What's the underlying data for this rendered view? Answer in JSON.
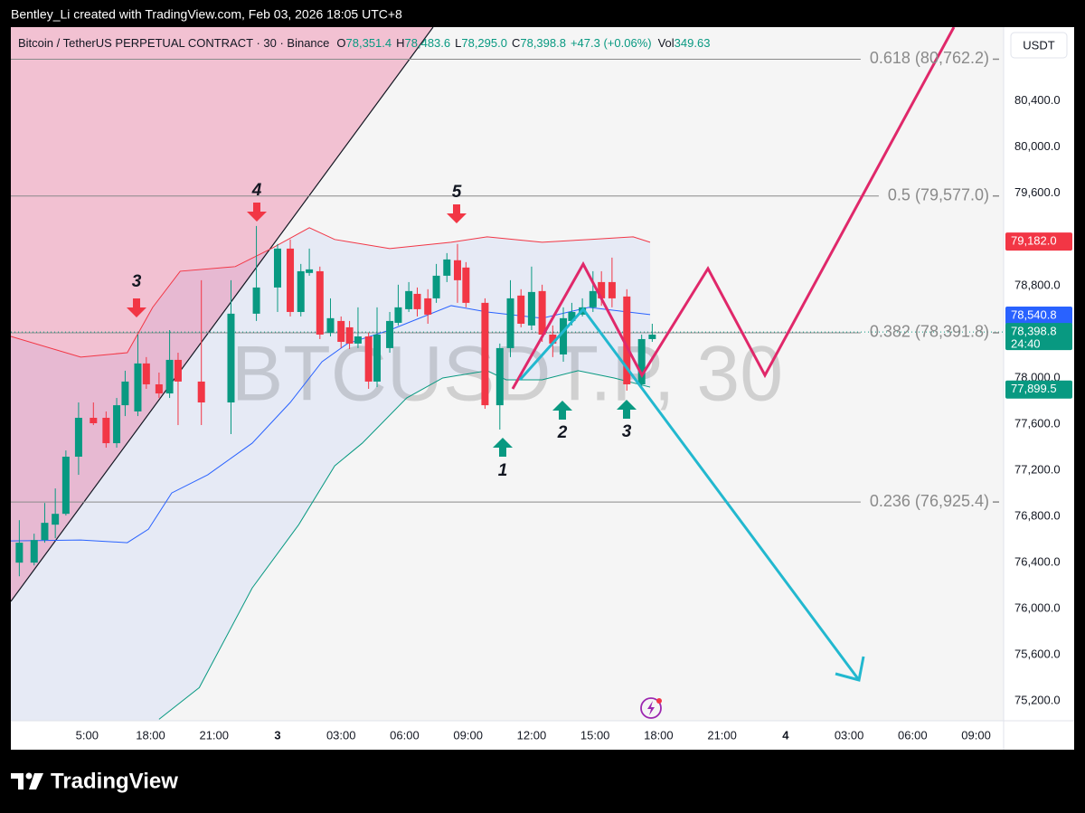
{
  "header": {
    "credit": "Bentley_Li created with TradingView.com, Feb 03, 2026 18:05 UTC+8",
    "brand": "TradingView"
  },
  "chart_data": {
    "type": "candlestick",
    "title": "Bitcoin / TetherUS PERPETUAL CONTRACT · 30 · Binance",
    "legend_values": [
      {
        "key": "O",
        "value": "78,351.4"
      },
      {
        "key": "H",
        "value": "78,483.6"
      },
      {
        "key": "L",
        "value": "78,295.0"
      },
      {
        "key": "C",
        "value": "78,398.8"
      }
    ],
    "change": "+47.3 (+0.06%)",
    "volume": {
      "key": "Vol",
      "value": "349.63"
    },
    "currency": "USDT",
    "watermark": "BTCUSDT.P, 30",
    "up_color": "#089981",
    "down_color": "#f23645",
    "x": [
      -12.2,
      -11.5,
      -11.0,
      -10.5,
      -10.0,
      -9.4,
      -8.7,
      -8.1,
      -7.6,
      -7.2,
      -6.6,
      -6.2,
      -5.6,
      -5.1,
      -4.7,
      -3.6,
      -2.2,
      -1.0,
      0.0,
      0.6,
      1.1,
      1.5,
      2.0,
      2.5,
      3.0,
      3.4,
      3.8,
      4.3,
      4.7,
      5.3,
      5.7,
      6.2,
      6.6,
      7.1,
      7.5,
      8.0,
      8.5,
      8.9,
      9.8,
      10.5,
      11.0,
      11.5,
      12.0,
      12.5,
      13.0,
      13.5,
      13.9,
      14.4,
      14.9,
      15.3,
      15.8,
      16.5,
      17.2,
      17.7
    ],
    "open": [
      76400,
      76400,
      76596,
      76729,
      76823,
      77318,
      77655,
      77655,
      77435,
      77764,
      77710,
      78126,
      77945,
      77866,
      78157,
      77969,
      77788,
      78557,
      78784,
      79121,
      78572,
      78910,
      78925,
      78392,
      78494,
      78439,
      78298,
      78360,
      77969,
      78259,
      78478,
      78596,
      78729,
      78690,
      78690,
      78886,
      79020,
      78957,
      78651,
      77764,
      78259,
      78714,
      78455,
      78753,
      78376,
      78204,
      78494,
      78549,
      78612,
      78831,
      78831,
      78706,
      77945,
      78337
    ],
    "high": [
      76768,
      76651,
      76917,
      77043,
      77372,
      77788,
      77788,
      77710,
      77827,
      78063,
      78376,
      78181,
      78047,
      78415,
      78219,
      78847,
      78847,
      79317,
      79161,
      79200,
      78988,
      79121,
      78965,
      78690,
      78533,
      78494,
      78612,
      78392,
      78612,
      78572,
      78808,
      78831,
      78784,
      78769,
      78988,
      79082,
      79161,
      79004,
      78690,
      78298,
      78847,
      78769,
      78965,
      78808,
      78455,
      78612,
      78651,
      78690,
      78925,
      78925,
      79043,
      78769,
      78376,
      78470
    ],
    "low": [
      76282,
      76376,
      76573,
      76612,
      76808,
      77161,
      77592,
      77396,
      77396,
      77670,
      77670,
      77906,
      77827,
      77827,
      77592,
      77592,
      77514,
      78494,
      78572,
      78533,
      78533,
      78886,
      78337,
      78360,
      78259,
      78251,
      78259,
      77906,
      77921,
      78219,
      78455,
      78572,
      78533,
      78470,
      78651,
      78831,
      78651,
      78612,
      77733,
      77553,
      78181,
      78439,
      78415,
      78313,
      78181,
      78141,
      78455,
      78533,
      78572,
      78627,
      78612,
      77890,
      77906,
      78313
    ],
    "close": [
      76573,
      76596,
      76745,
      76823,
      77318,
      77655,
      77608,
      77435,
      77764,
      77969,
      78126,
      77945,
      77866,
      78157,
      77969,
      77788,
      78557,
      78784,
      79121,
      78572,
      78925,
      78941,
      78376,
      78518,
      78313,
      78298,
      78360,
      77969,
      78376,
      78494,
      78612,
      78753,
      78596,
      78549,
      78886,
      79027,
      78847,
      78651,
      77764,
      78259,
      78690,
      78470,
      78745,
      78376,
      78298,
      78518,
      78572,
      78612,
      78753,
      78690,
      78690,
      77945,
      78337,
      78376
    ],
    "bands": [
      {
        "color": "#f23645",
        "x": [
          -12.6,
          -9.3,
          -7.1,
          -5.9,
          -4.6,
          -2.0,
          -0.3,
          1.5,
          2.7,
          5.3,
          8.2,
          9.9,
          12.5,
          14.7,
          16.8,
          17.6
        ],
        "values": [
          78360,
          78181,
          78219,
          78612,
          78925,
          78965,
          79121,
          79302,
          79200,
          79121,
          79176,
          79223,
          79176,
          79200,
          79223,
          79176
        ]
      },
      {
        "color": "#2962ff",
        "x": [
          -12.6,
          -9.3,
          -7.1,
          -6.1,
          -5.0,
          -3.3,
          -1.2,
          0.6,
          2.1,
          3.3,
          5.3,
          8.2,
          9.9,
          12.5,
          14.7,
          17.6
        ],
        "values": [
          76588,
          76596,
          76573,
          76690,
          77004,
          77161,
          77435,
          77788,
          78141,
          78298,
          78415,
          78627,
          78572,
          78518,
          78612,
          78549
        ]
      },
      {
        "color": "#089981",
        "x": [
          -5.6,
          -3.7,
          -1.2,
          1.0,
          2.7,
          4.0,
          6.1,
          7.8,
          9.9,
          10.8,
          12.5,
          14.2,
          15.9,
          17.6
        ],
        "values": [
          75043,
          75317,
          76180,
          76729,
          77239,
          77435,
          77827,
          78000,
          78063,
          77984,
          77984,
          78063,
          78000,
          77921
        ]
      }
    ],
    "fib_levels": [
      {
        "label": "0.618 (80,762.2)",
        "value": 80762.2
      },
      {
        "label": "0.5 (79,577.0)",
        "value": 79577.0
      },
      {
        "label": "0.382 (78,391.8)",
        "value": 78391.8
      },
      {
        "label": "0.236 (76,925.4)",
        "value": 76925.4
      }
    ],
    "price_labels": [
      {
        "label": "79,182.0",
        "value": 79182.0,
        "color": "#f23645"
      },
      {
        "label": "78,540.8",
        "value": 78540.8,
        "color": "#2962ff"
      },
      {
        "label": "78,398.8",
        "value": 78398.8,
        "color": "#089981",
        "countdown": "24:40"
      },
      {
        "label": "77,899.5",
        "value": 77899.5,
        "color": "#089981"
      }
    ],
    "wave_labels": [
      "3",
      "4",
      "5"
    ],
    "signal_labels": [
      "1",
      "2",
      "3"
    ],
    "xlim": [
      -12.6,
      34.3
    ],
    "xticks": [
      {
        "value": -9,
        "label": "5:00"
      },
      {
        "value": -6,
        "label": "18:00"
      },
      {
        "value": -3,
        "label": "21:00"
      },
      {
        "value": 0,
        "label": "3"
      },
      {
        "value": 3,
        "label": "03:00"
      },
      {
        "value": 6,
        "label": "06:00"
      },
      {
        "value": 9,
        "label": "09:00"
      },
      {
        "value": 12,
        "label": "12:00"
      },
      {
        "value": 15,
        "label": "15:00"
      },
      {
        "value": 18,
        "label": "18:00"
      },
      {
        "value": 21,
        "label": "21:00"
      },
      {
        "value": 24,
        "label": "4"
      },
      {
        "value": 27,
        "label": "03:00"
      },
      {
        "value": 30,
        "label": "06:00"
      },
      {
        "value": 33,
        "label": "09:00"
      }
    ],
    "ylim": [
      75030,
      81040
    ],
    "yticks": [
      {
        "value": 80400,
        "label": "80,400.0"
      },
      {
        "value": 80000,
        "label": "80,000.0"
      },
      {
        "value": 79600,
        "label": "79,600.0"
      },
      {
        "value": 78800,
        "label": "78,800.0"
      },
      {
        "value": 78000,
        "label": "78,000.0"
      },
      {
        "value": 77600,
        "label": "77,600.0"
      },
      {
        "value": 77200,
        "label": "77,200.0"
      },
      {
        "value": 76800,
        "label": "76,800.0"
      },
      {
        "value": 76400,
        "label": "76,400.0"
      },
      {
        "value": 76000,
        "label": "76,000.0"
      },
      {
        "value": 75600,
        "label": "75,600.0"
      },
      {
        "value": 75200,
        "label": "75,200.0"
      }
    ],
    "grid": false
  }
}
